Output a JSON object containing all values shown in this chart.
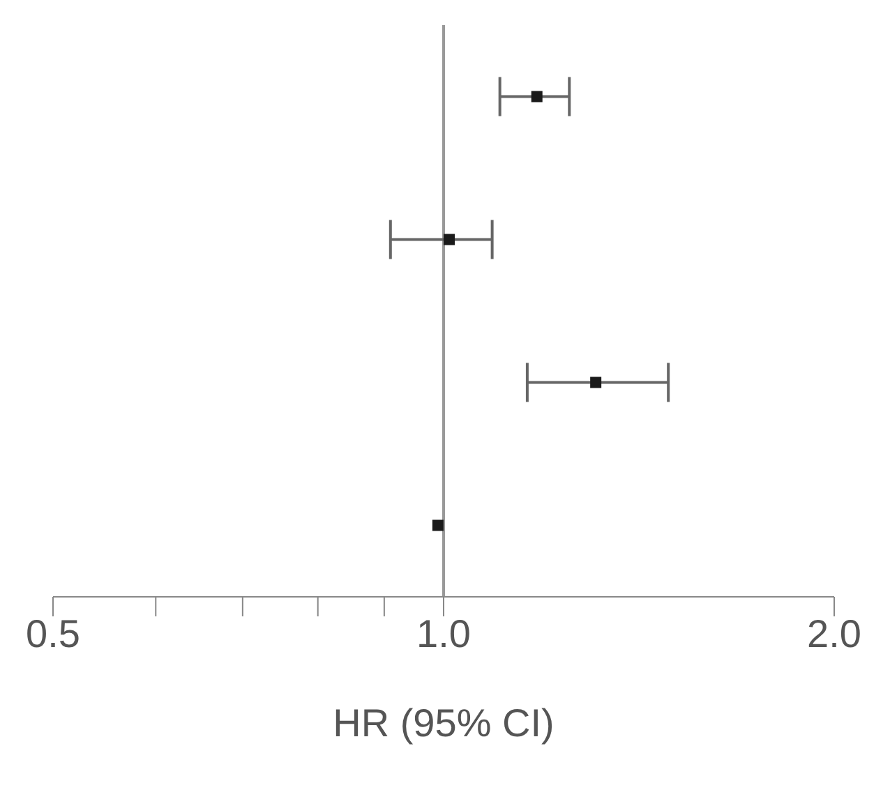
{
  "chart_data": {
    "type": "scatter",
    "orientation": "horizontal",
    "categories": [
      null,
      null,
      null,
      null
    ],
    "values": [
      1.18,
      1.01,
      1.31,
      0.99
    ],
    "errors": [
      [
        1.105,
        1.25
      ],
      [
        0.91,
        1.09
      ],
      [
        1.16,
        1.49
      ],
      null
    ],
    "color": "#1a1a1a",
    "marker": "square",
    "xlabel": "HR (95% CI)",
    "log": "x",
    "xlim": [
      0.5,
      2.0
    ],
    "xticks": [
      {
        "value": 0.5,
        "label": "0.5"
      },
      {
        "value": 0.6,
        "label": null
      },
      {
        "value": 0.7,
        "label": null
      },
      {
        "value": 0.8,
        "label": null
      },
      {
        "value": 0.9,
        "label": null
      },
      {
        "value": 1.0,
        "label": "1.0"
      },
      {
        "value": 2.0,
        "label": "2.0"
      }
    ],
    "tick_labels": "x",
    "grid": false,
    "ref_lines": [
      {
        "axis": "x",
        "value": 1.0,
        "label": null,
        "color": "#999999"
      }
    ]
  }
}
